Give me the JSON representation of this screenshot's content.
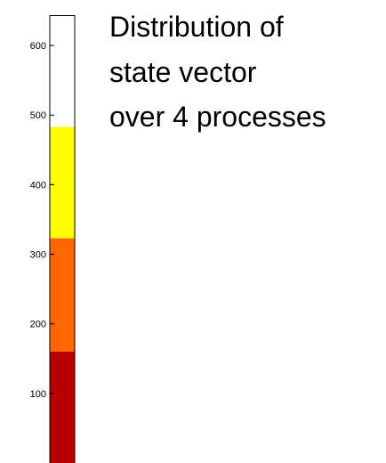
{
  "chart_data": {
    "type": "bar",
    "orientation": "vertical-stacked",
    "title_lines": [
      "Distribution of",
      "state vector",
      "over 4 processes"
    ],
    "yticks": [
      100,
      200,
      300,
      400,
      500,
      600
    ],
    "ylim": [
      0,
      650
    ],
    "segments": [
      {
        "start": 0,
        "end": 160,
        "color": "#b80000"
      },
      {
        "start": 160,
        "end": 323,
        "color": "#ff6600"
      },
      {
        "start": 323,
        "end": 483,
        "color": "#ffff00"
      },
      {
        "start": 483,
        "end": 643,
        "color": "#ffffff"
      }
    ],
    "grid": false
  }
}
